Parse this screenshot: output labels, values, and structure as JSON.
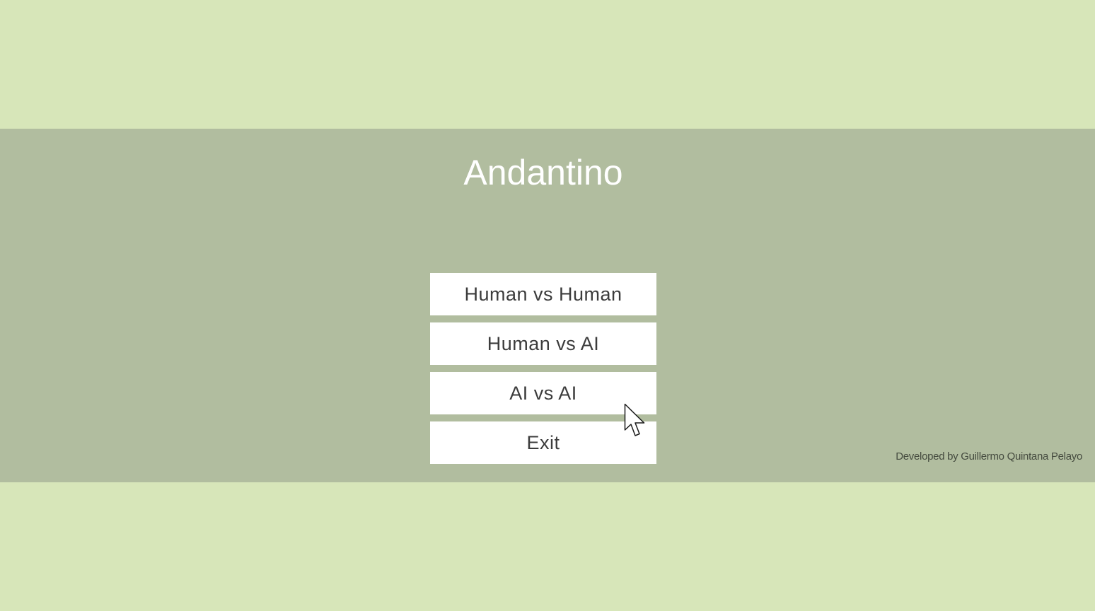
{
  "title": "Andantino",
  "menu": {
    "buttons": [
      {
        "label": "Human vs Human"
      },
      {
        "label": "Human vs AI"
      },
      {
        "label": "AI vs AI"
      },
      {
        "label": "Exit"
      }
    ]
  },
  "credits": "Developed by Guillermo Quintana Pelayo",
  "colors": {
    "background": "#d7e6b9",
    "band": "#b1bd9f",
    "button_bg": "#ffffff",
    "button_text": "#3c3c3c",
    "title_text": "#ffffff"
  },
  "cursor_icon": "arrow-cursor-icon"
}
